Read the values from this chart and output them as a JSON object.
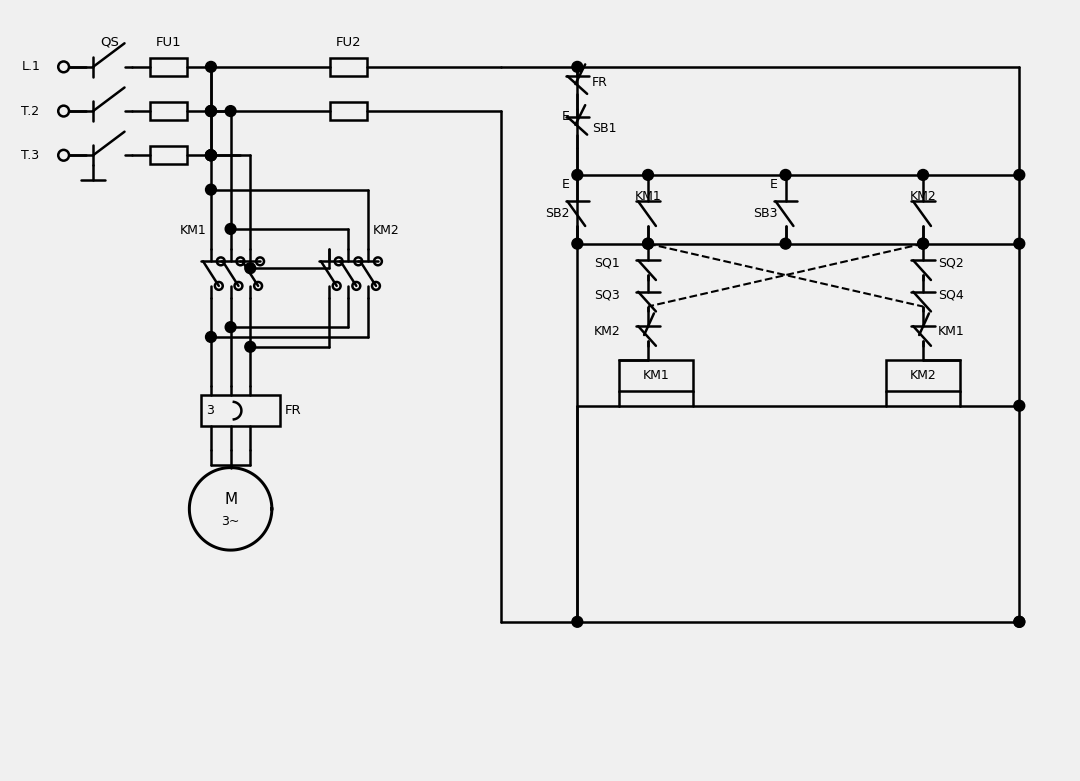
{
  "background_color": "#f0f0f0",
  "line_color": "#000000",
  "line_width": 1.8,
  "fig_width": 10.8,
  "fig_height": 7.81,
  "labels": {
    "L1": "L.1",
    "L2": "T.2",
    "L3": "T.3",
    "QS": "QS",
    "FU1": "FU1",
    "FU2": "FU2",
    "FR_main": "FR",
    "FR_ctrl": "FR",
    "KM1_main": "KM1",
    "KM2_main": "KM2",
    "motor": "M",
    "motor_phase": "3~",
    "SB1": "SB1",
    "SB2": "SB2",
    "SB3": "SB3",
    "KM1_no": "KM1",
    "KM2_no": "KM2",
    "SQ1": "SQ1",
    "SQ2": "SQ2",
    "SQ3": "SQ3",
    "SQ4": "SQ4",
    "KM1_nc": "KM1",
    "KM2_nc": "KM2",
    "coil_KM1": "KM1",
    "coil_KM2": "KM2",
    "E": "E",
    "three": "3"
  }
}
